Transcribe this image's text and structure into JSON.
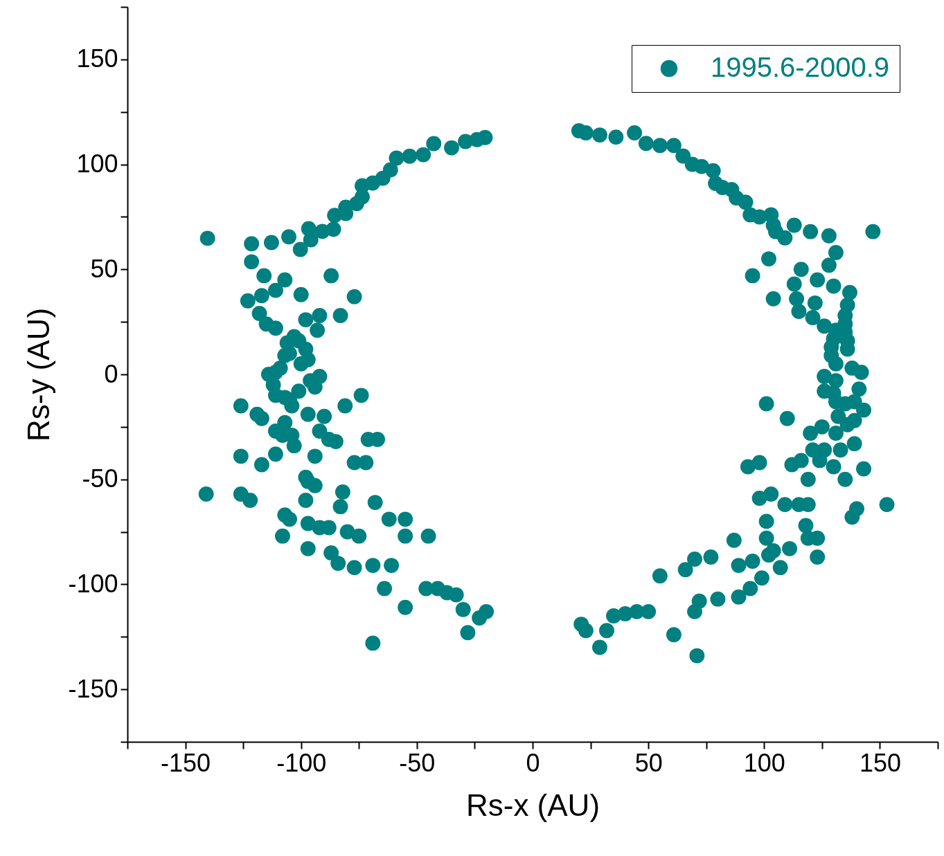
{
  "chart_data": {
    "type": "scatter",
    "xlabel": "Rs-x (AU)",
    "ylabel": "Rs-y (AU)",
    "xlim": [
      -175,
      175
    ],
    "ylim": [
      -175,
      175
    ],
    "xticks": [
      {
        "value": -175,
        "label": null
      },
      -150,
      {
        "value": -125,
        "label": null
      },
      -100,
      {
        "value": -75,
        "label": null
      },
      -50,
      {
        "value": -25,
        "label": null
      },
      0,
      {
        "value": 25,
        "label": null
      },
      50,
      {
        "value": 75,
        "label": null
      },
      100,
      {
        "value": 125,
        "label": null
      },
      150,
      {
        "value": 175,
        "label": null
      }
    ],
    "yticks": [
      {
        "value": -175,
        "label": null
      },
      -150,
      {
        "value": -125,
        "label": null
      },
      -100,
      {
        "value": -75,
        "label": null
      },
      -50,
      {
        "value": -25,
        "label": null
      },
      0,
      {
        "value": 25,
        "label": null
      },
      50,
      {
        "value": 75,
        "label": null
      },
      100,
      {
        "value": 125,
        "label": null
      },
      150,
      {
        "value": 175,
        "label": null
      }
    ],
    "legend": "top right",
    "marker": "circle",
    "x": [
      -20.5,
      -24,
      -29,
      -35,
      -42.7,
      -47.2,
      -53.1,
      -58.8,
      -61.4,
      -64.7,
      -69.1,
      -73.6,
      -73.6,
      -76,
      -80.7,
      -80.7,
      -85.5,
      -86,
      -90.8,
      -95.8,
      -96.7,
      -100.3,
      -105.3,
      -112.8,
      -121.4,
      -121.4,
      -140.4,
      -116,
      -107,
      -111,
      -117,
      -123,
      -100,
      -87,
      -77,
      -118,
      -115,
      -111,
      -98,
      -92,
      -93,
      -83,
      -103,
      -101,
      -106,
      -98,
      -105,
      -107,
      -97,
      -100,
      -109,
      -111,
      -114,
      -92,
      -96,
      -94,
      -101,
      -112,
      -111,
      -107,
      -105,
      -104,
      -74,
      -81,
      -126,
      -119,
      -117,
      -97,
      -90,
      -107,
      -111,
      -108,
      -104,
      -103,
      -92,
      -88,
      -85,
      -71,
      -67,
      -111,
      -94,
      -126,
      -117,
      -77,
      -72,
      -98,
      -97,
      -94,
      -141,
      -126,
      -122,
      -98,
      -82,
      -68,
      -107,
      -105,
      -97,
      -92,
      -88,
      -83,
      -62,
      -55,
      -108,
      -80,
      -75,
      -55,
      -45,
      -97,
      -87,
      -84,
      -77,
      -69,
      -61,
      -64,
      -46,
      -41,
      -37,
      -33,
      -55,
      -30,
      -20,
      -23,
      -28,
      -69,
      20,
      23,
      29,
      36,
      44,
      49,
      55,
      61,
      65,
      69,
      73,
      78,
      79,
      82,
      86,
      88,
      92,
      94,
      98,
      103,
      104,
      105,
      109,
      113,
      120,
      128,
      147,
      131,
      102,
      116,
      128,
      95,
      113,
      123,
      130,
      137,
      104,
      114,
      115,
      122,
      136,
      121,
      135,
      126,
      135,
      131,
      135,
      130,
      136,
      129,
      136,
      129,
      131,
      138,
      142,
      126,
      131,
      126,
      141,
      130,
      131,
      139,
      101,
      135,
      143,
      132,
      110,
      136,
      139,
      125,
      131,
      120,
      121,
      126,
      133,
      139,
      116,
      124,
      98,
      93,
      112,
      130,
      143,
      119,
      135,
      103,
      98,
      109,
      115,
      119,
      153,
      140,
      138,
      101,
      118,
      101,
      119,
      123,
      87,
      111,
      104,
      102,
      123,
      77,
      70,
      95,
      89,
      107,
      66,
      55,
      99,
      94,
      89,
      80,
      72,
      70,
      50,
      45,
      40,
      35,
      21,
      23,
      32,
      29,
      61,
      71
    ],
    "series": [
      {
        "name": "1995.6-2000.9",
        "color": "#008080",
        "values": [
          112.8,
          111.8,
          110.9,
          107.9,
          109.9,
          104.6,
          103.9,
          103,
          97.4,
          93.4,
          91.1,
          89.8,
          84.5,
          81.3,
          79.6,
          76.6,
          75.7,
          69.1,
          68.1,
          64.1,
          69.4,
          59.5,
          65.5,
          62.8,
          62.2,
          53.6,
          64.8,
          47,
          45,
          40,
          37.5,
          35,
          38,
          47,
          37,
          29,
          24,
          22,
          26,
          28,
          21,
          28,
          18,
          16,
          15,
          12,
          10,
          9,
          7,
          5,
          3,
          1,
          0,
          -1,
          -3,
          -6,
          -8,
          -5,
          -10,
          -11,
          -12,
          -15,
          -10,
          -15,
          -15,
          -19,
          -21,
          -19,
          -20,
          -23,
          -27,
          -29,
          -29,
          -34,
          -27,
          -31,
          -32,
          -31,
          -31,
          -38,
          -39,
          -39,
          -43,
          -42,
          -42,
          -49,
          -51,
          -53,
          -57,
          -57,
          -60,
          -60,
          -56,
          -61,
          -67,
          -69,
          -71,
          -73,
          -73,
          -63,
          -69,
          -69,
          -77,
          -75,
          -77,
          -77,
          -77,
          -83,
          -85,
          -90,
          -92,
          -91,
          -91,
          -102,
          -102,
          -102,
          -104,
          -105,
          -111,
          -112,
          -113,
          -116,
          -123,
          -128,
          116,
          115,
          114,
          113,
          115,
          110,
          109,
          109,
          104,
          100,
          99,
          97,
          91,
          89,
          88,
          84,
          82,
          76,
          75,
          76,
          71,
          68,
          65,
          71,
          68,
          66,
          68,
          58,
          55,
          50,
          52,
          47,
          43,
          45,
          42,
          39,
          36,
          36,
          30,
          34,
          33,
          27,
          28,
          23,
          24,
          21,
          20,
          17,
          16,
          13,
          12,
          9,
          5,
          3,
          1,
          -1,
          -3,
          -8,
          -7,
          -9,
          -13,
          -13,
          -14,
          -14,
          -17,
          -20,
          -21,
          -24,
          -22,
          -25,
          -28,
          -28,
          -36,
          -36,
          -36,
          -33,
          -41,
          -41,
          -42,
          -44,
          -43,
          -44,
          -45,
          -50,
          -50,
          -57,
          -59,
          -62,
          -62,
          -62,
          -62,
          -64,
          -68,
          -70,
          -72,
          -78,
          -78,
          -78,
          -79,
          -83,
          -84,
          -86,
          -87,
          -87,
          -88,
          -89,
          -91,
          -92,
          -93,
          -96,
          -97,
          -102,
          -106,
          -107,
          -108,
          -113,
          -113,
          -113,
          -114,
          -115,
          -119,
          -122,
          -122,
          -130,
          -124,
          -134
        ]
      }
    ]
  }
}
